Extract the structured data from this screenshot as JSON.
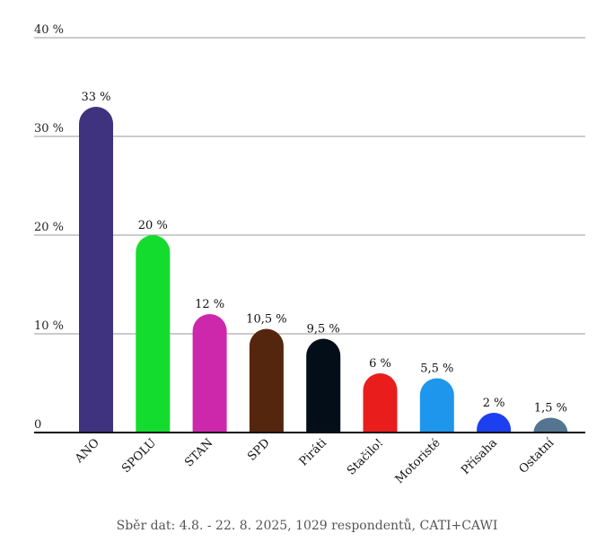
{
  "chart_data": {
    "type": "bar",
    "categories": [
      "ANO",
      "SPOLU",
      "STAN",
      "SPD",
      "Piráti",
      "Stačilo!",
      "Motoristé",
      "Přísaha",
      "Ostatní"
    ],
    "values": [
      33,
      20,
      12,
      10.5,
      9.5,
      6,
      5.5,
      2,
      1.5
    ],
    "value_labels": [
      "33 %",
      "20 %",
      "12 %",
      "10,5 %",
      "9,5 %",
      "6 %",
      "5,5 %",
      "2 %",
      "1,5 %"
    ],
    "colors": [
      "#3f3380",
      "#14dc2e",
      "#cd27ac",
      "#55260e",
      "#030e18",
      "#ea1d1d",
      "#1e96ec",
      "#1c40f0",
      "#557490"
    ],
    "ylim": [
      0,
      40
    ],
    "yticks": [
      0,
      10,
      20,
      30,
      40
    ],
    "ytick_labels": [
      "0",
      "10 %",
      "20 %",
      "30 %",
      "40 %"
    ],
    "grid": true,
    "note": "Sběr dat: 4.8. - 22. 8. 2025,  1029 respondentů, CATI+CAWI"
  }
}
